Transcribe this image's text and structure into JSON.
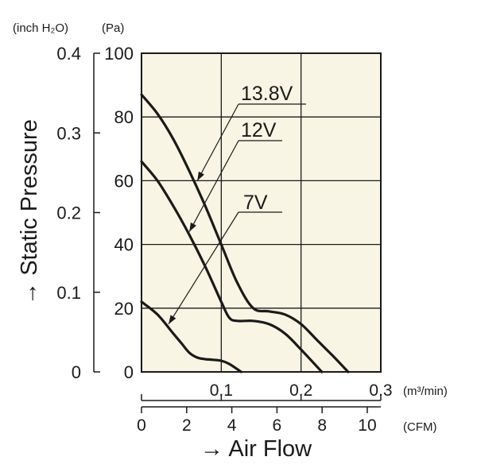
{
  "chart_data": {
    "type": "line",
    "xlabel": "→ Air Flow",
    "ylabel": "→ Static Pressure",
    "plot_background": "#f8f5e4",
    "line_color": "#1a1a1a",
    "x_axis": {
      "unit": "(m³/min)",
      "range": [
        0,
        0.3
      ],
      "ticks": [
        "0.1",
        "0.2",
        "0.3"
      ],
      "tick_values": [
        0.1,
        0.2,
        0.3
      ]
    },
    "x_axis_secondary": {
      "unit": "(CFM)",
      "range": [
        0,
        10.6
      ],
      "ticks": [
        "0",
        "2",
        "4",
        "6",
        "8",
        "10"
      ],
      "tick_values": [
        0,
        2,
        4,
        6,
        8,
        10
      ]
    },
    "y_axis": {
      "unit": "(Pa)",
      "range": [
        0,
        100
      ],
      "ticks": [
        "0",
        "20",
        "40",
        "60",
        "80",
        "100"
      ],
      "tick_values": [
        0,
        20,
        40,
        60,
        80,
        100
      ]
    },
    "y_axis_secondary": {
      "unit": "(inch H₂O)",
      "range": [
        0,
        0.4
      ],
      "ticks": [
        "0",
        "0.1",
        "0.2",
        "0.3",
        "0.4"
      ],
      "tick_values": [
        0,
        0.1,
        0.2,
        0.3,
        0.4
      ]
    },
    "grid": true,
    "series": [
      {
        "name": "13.8V",
        "x": [
          0,
          0.02,
          0.04,
          0.06,
          0.08,
          0.1,
          0.12,
          0.14,
          0.16,
          0.18,
          0.2,
          0.22,
          0.24,
          0.259
        ],
        "y": [
          87,
          81,
          73,
          63,
          52,
          40,
          28,
          20,
          19,
          18,
          15,
          10,
          5,
          0
        ]
      },
      {
        "name": "12V",
        "x": [
          0,
          0.02,
          0.04,
          0.06,
          0.08,
          0.1,
          0.11,
          0.12,
          0.14,
          0.16,
          0.18,
          0.2,
          0.226
        ],
        "y": [
          66,
          60,
          52,
          43,
          33,
          22,
          17,
          16,
          16,
          15,
          12,
          7,
          0
        ]
      },
      {
        "name": "7V",
        "x": [
          0,
          0.02,
          0.04,
          0.05,
          0.06,
          0.07,
          0.08,
          0.09,
          0.1,
          0.11,
          0.125
        ],
        "y": [
          22,
          18,
          12,
          9,
          6,
          4.5,
          4,
          3.8,
          3.5,
          2.5,
          0
        ]
      }
    ],
    "labels": [
      {
        "text": "13.8V",
        "series": "13.8V",
        "point_to": [
          0.07,
          60
        ]
      },
      {
        "text": "12V",
        "series": "12V",
        "point_to": [
          0.06,
          44
        ]
      },
      {
        "text": "7V",
        "series": "7V",
        "point_to": [
          0.034,
          15
        ]
      }
    ]
  }
}
